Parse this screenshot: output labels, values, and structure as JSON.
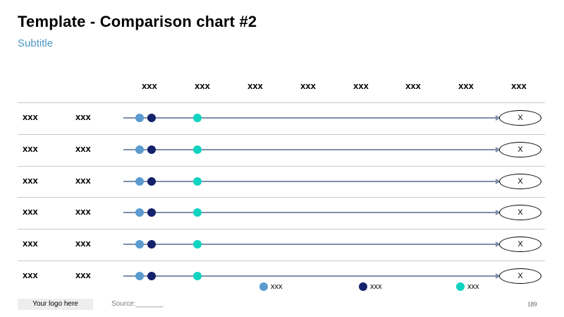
{
  "title": "Template - Comparison chart #2",
  "subtitle": "Subtitle",
  "column_headers": [
    "xxx",
    "xxx",
    "xxx",
    "xxx",
    "xxx",
    "xxx",
    "xxx",
    "xxx"
  ],
  "rows": [
    {
      "label_a": "xxx",
      "label_b": "xxx",
      "end_label": "X"
    },
    {
      "label_a": "xxx",
      "label_b": "xxx",
      "end_label": "X"
    },
    {
      "label_a": "xxx",
      "label_b": "xxx",
      "end_label": "X"
    },
    {
      "label_a": "xxx",
      "label_b": "xxx",
      "end_label": "X"
    },
    {
      "label_a": "xxx",
      "label_b": "xxx",
      "end_label": "X"
    },
    {
      "label_a": "xxx",
      "label_b": "xxx",
      "end_label": "X"
    }
  ],
  "legend": [
    {
      "label": "xxx",
      "color": "#5b9bd0"
    },
    {
      "label": "xxx",
      "color": "#14216b"
    },
    {
      "label": "xxx",
      "color": "#10d3c1"
    }
  ],
  "colors": {
    "track": "#7f8fa9",
    "subtitle": "#4f95c6"
  },
  "footer": {
    "logo": "Your logo here",
    "source": "Source:_______",
    "page_number": "189"
  }
}
